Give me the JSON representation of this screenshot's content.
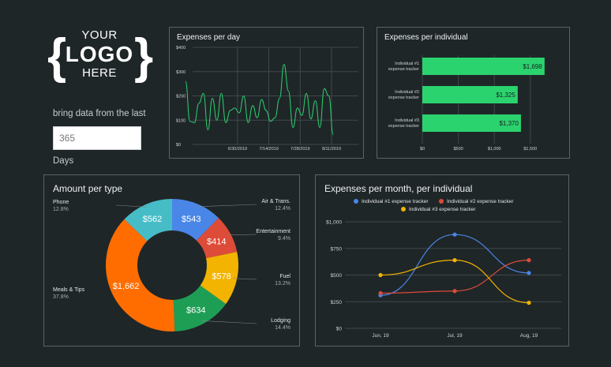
{
  "logo": {
    "line1": "YOUR",
    "line2": "LOGO",
    "line3": "HERE",
    "brace_left": "{",
    "brace_right": "}"
  },
  "filter": {
    "label": "bring data from the last",
    "value": "365",
    "unit": "Days"
  },
  "colors": {
    "background": "#1f2628",
    "green": "#2bd36e",
    "blue": "#4a86e8",
    "red": "#dd4b39",
    "yellow": "#f2b400",
    "orange": "#ff6d00",
    "teal": "#46bdc6",
    "darkgreen": "#1e9e55"
  },
  "chart_data": [
    {
      "type": "line",
      "title": "Expenses per day",
      "y_ticks": [
        "$400",
        "$300",
        "$200",
        "$100",
        "$0"
      ],
      "x_ticks": [
        "6/30/2019",
        "7/14/2019",
        "7/28/2019",
        "8/11/2019"
      ],
      "ylim": [
        0,
        400
      ],
      "x_tick_dates": [
        "2019-06-30",
        "2019-07-14",
        "2019-07-28",
        "2019-08-11"
      ],
      "x_range": [
        "2019-06-17",
        "2019-08-23"
      ],
      "series": [
        {
          "color": "#2bd36e",
          "x": [
            "2019-06-17",
            "2019-06-19",
            "2019-06-21",
            "2019-06-23",
            "2019-06-25",
            "2019-06-27",
            "2019-06-29",
            "2019-07-01",
            "2019-07-03",
            "2019-07-05",
            "2019-07-07",
            "2019-07-09",
            "2019-07-11",
            "2019-07-13",
            "2019-07-15",
            "2019-07-17",
            "2019-07-19",
            "2019-07-21",
            "2019-07-23",
            "2019-07-25",
            "2019-07-27",
            "2019-07-29",
            "2019-07-31",
            "2019-08-02",
            "2019-08-04",
            "2019-08-06",
            "2019-08-08",
            "2019-08-10",
            "2019-08-12",
            "2019-08-14",
            "2019-08-16",
            "2019-08-18",
            "2019-08-20",
            "2019-08-22"
          ],
          "values": [
            260,
            95,
            90,
            170,
            210,
            60,
            190,
            100,
            210,
            90,
            140,
            150,
            130,
            200,
            90,
            160,
            110,
            185,
            140,
            95,
            110,
            190,
            330,
            220,
            70,
            150,
            120,
            210,
            105,
            180,
            70,
            230,
            200,
            40
          ]
        }
      ]
    },
    {
      "type": "bar",
      "title": "Expenses per individual",
      "categories": [
        [
          "Individual #1",
          "expense tracker"
        ],
        [
          "Individual #2",
          "expense tracker"
        ],
        [
          "Individual #3",
          "expense tracker"
        ]
      ],
      "values": [
        1698,
        1325,
        1370
      ],
      "value_labels": [
        "$1,698",
        "$1,325",
        "$1,370"
      ],
      "x_ticks": [
        "$0",
        "$500",
        "$1,000",
        "$1,500"
      ],
      "xlim": [
        0,
        1930
      ],
      "color": "#2bd36e"
    },
    {
      "type": "pie",
      "title": "Amount per type",
      "slices": [
        {
          "label": "Air & Trans.",
          "pct": "12.4%",
          "value": 543,
          "value_label": "$543",
          "color": "#4a86e8"
        },
        {
          "label": "Entertainment",
          "pct": "9.4%",
          "value": 414,
          "value_label": "$414",
          "color": "#dd4b39"
        },
        {
          "label": "Fuel",
          "pct": "13.2%",
          "value": 578,
          "value_label": "$578",
          "color": "#f2b400"
        },
        {
          "label": "Lodging",
          "pct": "14.4%",
          "value": 634,
          "value_label": "$634",
          "color": "#1e9e55"
        },
        {
          "label": "Meals & Tips",
          "pct": "37.8%",
          "value": 1662,
          "value_label": "$1,662",
          "color": "#ff6d00"
        },
        {
          "label": "Phone",
          "pct": "12.8%",
          "value": 562,
          "value_label": "$562",
          "color": "#46bdc6"
        }
      ]
    },
    {
      "type": "line",
      "title": "Expenses per month, per individual",
      "categories": [
        "Jun, 19",
        "Jul, 19",
        "Aug, 19"
      ],
      "y_ticks": [
        "$1,000",
        "$750",
        "$500",
        "$250",
        "$0"
      ],
      "ylim": [
        0,
        1000
      ],
      "legend": "top",
      "series": [
        {
          "name": "Individual #1 expense tracker",
          "color": "#4a86e8",
          "values": [
            310,
            880,
            520
          ]
        },
        {
          "name": "Individual #2 expense tracker",
          "color": "#dd4b39",
          "values": [
            330,
            350,
            640
          ]
        },
        {
          "name": "Individual #3 expense tracker",
          "color": "#f2b400",
          "values": [
            500,
            640,
            240
          ]
        }
      ]
    }
  ]
}
